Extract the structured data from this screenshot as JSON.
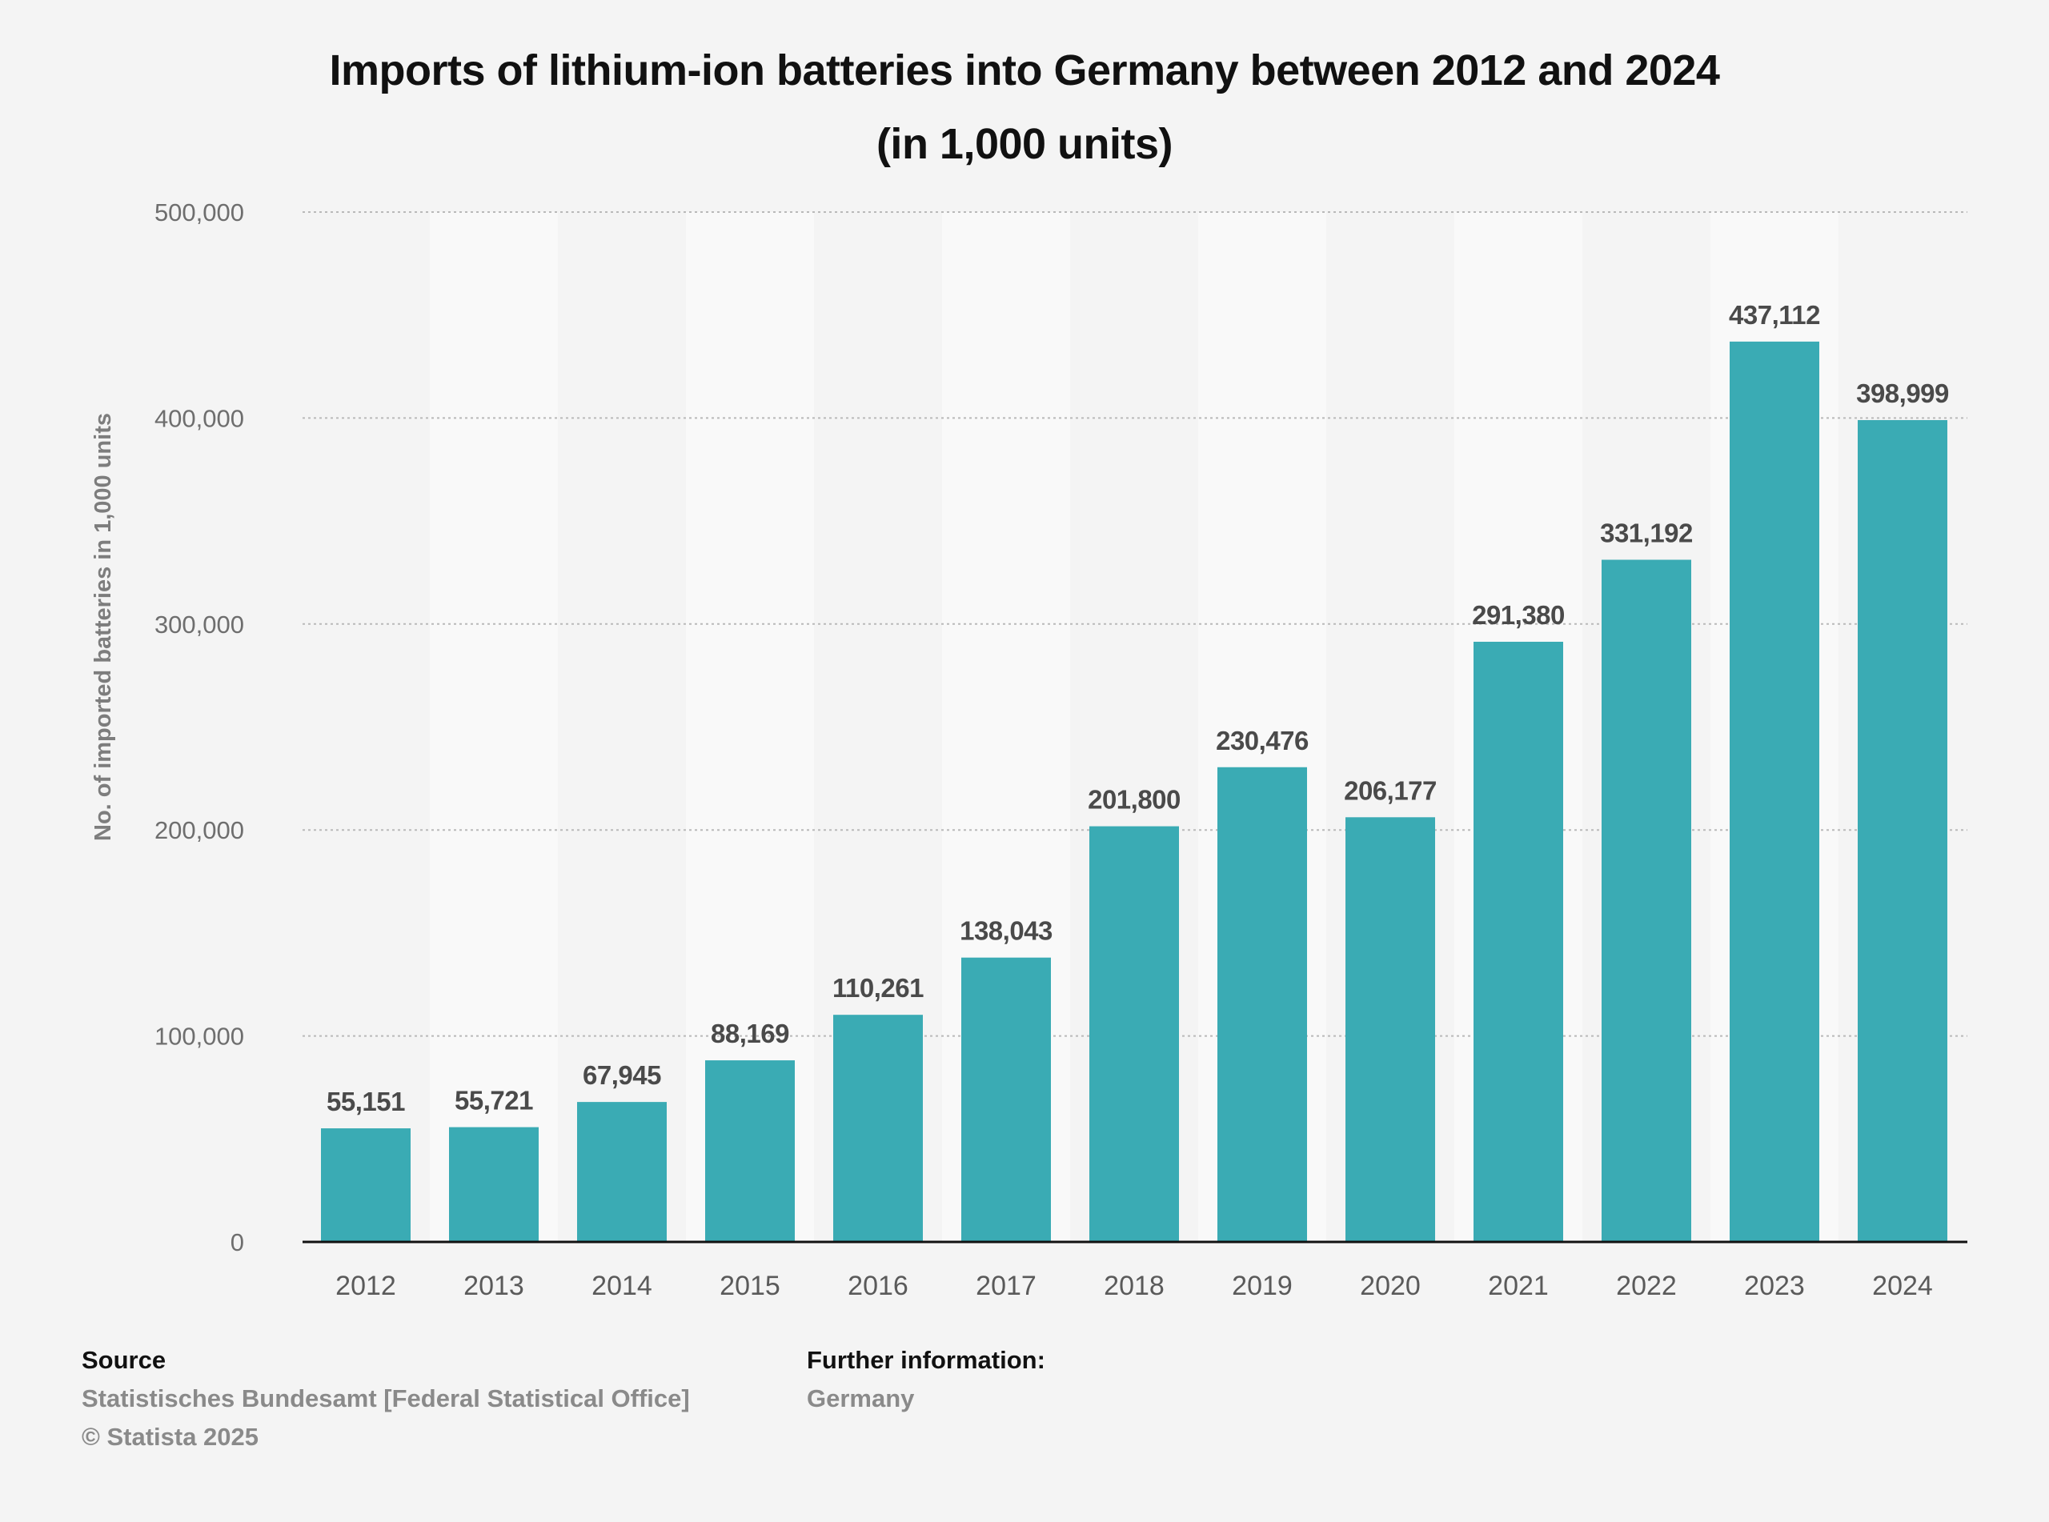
{
  "title": {
    "line1": "Imports of lithium-ion batteries into Germany between 2012 and 2024",
    "line2": "(in 1,000 units)"
  },
  "chart_data": {
    "type": "bar",
    "categories": [
      "2012",
      "2013",
      "2014",
      "2015",
      "2016",
      "2017",
      "2018",
      "2019",
      "2020",
      "2021",
      "2022",
      "2023",
      "2024"
    ],
    "values": [
      55151,
      55721,
      67945,
      88169,
      110261,
      138043,
      201800,
      230476,
      206177,
      291380,
      331192,
      437112,
      398999
    ],
    "value_labels": [
      "55,151",
      "55,721",
      "67,945",
      "88,169",
      "110,261",
      "138,043",
      "201,800",
      "230,476",
      "206,177",
      "291,380",
      "331,192",
      "437,112",
      "398,999"
    ],
    "ylabel": "No. of imported batteries in 1,000 units",
    "xlabel": "",
    "ylim": [
      0,
      500000
    ],
    "yticks": [
      0,
      100000,
      200000,
      300000,
      400000,
      500000
    ],
    "ytick_labels": [
      "0",
      "100,000",
      "200,000",
      "300,000",
      "400,000",
      "500,000"
    ],
    "grid": true,
    "legend": "none",
    "bar_color": "#3aabb4"
  },
  "footer": {
    "source_heading": "Source",
    "source_text": "Statistisches Bundesamt [Federal Statistical Office]",
    "copyright": "© Statista 2025",
    "further_heading": "Further information:",
    "further_text": "Germany"
  }
}
